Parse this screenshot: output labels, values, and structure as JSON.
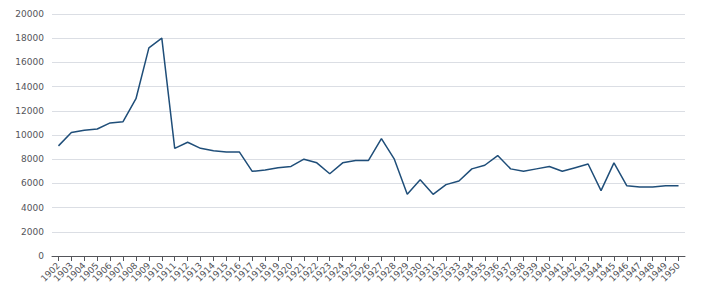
{
  "chart_data": {
    "type": "line",
    "x": [
      1902,
      1903,
      1904,
      1905,
      1906,
      1907,
      1908,
      1909,
      1910,
      1911,
      1912,
      1913,
      1914,
      1915,
      1916,
      1917,
      1918,
      1919,
      1920,
      1921,
      1922,
      1923,
      1924,
      1925,
      1926,
      1927,
      1928,
      1929,
      1930,
      1931,
      1932,
      1933,
      1934,
      1935,
      1936,
      1937,
      1938,
      1939,
      1940,
      1941,
      1942,
      1943,
      1944,
      1945,
      1946,
      1947,
      1948,
      1949,
      1950
    ],
    "values": [
      9100,
      10200,
      10400,
      10500,
      11000,
      11100,
      13000,
      17200,
      18000,
      8900,
      9400,
      8900,
      8700,
      8600,
      8600,
      7000,
      7100,
      7300,
      7400,
      8000,
      7700,
      6800,
      7700,
      7900,
      7900,
      9700,
      8000,
      5100,
      6300,
      5100,
      5900,
      6200,
      7200,
      7500,
      8300,
      7200,
      7000,
      7200,
      7400,
      7000,
      7300,
      7600,
      5400,
      7700,
      5800,
      5700,
      5700,
      5800,
      5800
    ],
    "color": "#1F4E79",
    "xlim": [
      1901.5,
      1950.5
    ],
    "xticks": [
      1902,
      1903,
      1904,
      1905,
      1906,
      1907,
      1908,
      1909,
      1910,
      1911,
      1912,
      1913,
      1914,
      1915,
      1916,
      1917,
      1918,
      1919,
      1920,
      1921,
      1922,
      1923,
      1924,
      1925,
      1926,
      1927,
      1928,
      1929,
      1930,
      1931,
      1932,
      1933,
      1934,
      1935,
      1936,
      1937,
      1938,
      1939,
      1940,
      1941,
      1942,
      1943,
      1944,
      1945,
      1946,
      1947,
      1948,
      1949,
      1950
    ],
    "ylim": [
      0,
      20000
    ],
    "yticks": [
      0,
      2000,
      4000,
      6000,
      8000,
      10000,
      12000,
      14000,
      16000,
      18000,
      20000
    ],
    "grid": true
  }
}
